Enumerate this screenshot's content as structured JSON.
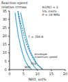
{
  "chart_data": {
    "type": "line",
    "y_label": "Reaction speed relative r/rmax",
    "x_label": "NH3, vol%",
    "annotations": [
      "H2/N2 = 3",
      "5% inerts",
      "P = 28 MPa"
    ],
    "xlim": [
      0,
      20
    ],
    "xticks": [
      0,
      5,
      10,
      15,
      20
    ],
    "ylim": [
      0,
      35
    ],
    "yticks": [
      0,
      5,
      10,
      15,
      20,
      25,
      30,
      35
    ],
    "grid": false,
    "series": [
      {
        "name": "800",
        "color": "#3fa9d8",
        "line_style": "solid",
        "x": [
          2,
          3,
          4,
          5,
          6,
          7,
          8
        ],
        "values": [
          34,
          22,
          14,
          8,
          4,
          1.5,
          0
        ]
      },
      {
        "name": "750",
        "color": "#3fa9d8",
        "line_style": "solid",
        "x": [
          3,
          4,
          5,
          6,
          7,
          8,
          9,
          10
        ],
        "values": [
          35,
          25,
          17,
          11,
          7,
          4,
          1.5,
          0
        ]
      },
      {
        "name": "T = 700 K",
        "color": "#3fa9d8",
        "line_style": "solid",
        "x": [
          4,
          5,
          6,
          7,
          8,
          9,
          10,
          11,
          12
        ],
        "values": [
          34,
          26,
          19,
          13,
          9,
          6,
          3,
          1.5,
          0
        ]
      },
      {
        "name": "envelope maximum speed",
        "color": "#1f5f8b",
        "line_style": "dashed",
        "x": [
          3,
          4,
          6,
          8,
          10,
          12
        ],
        "values": [
          35,
          28,
          16,
          8,
          3,
          0
        ]
      }
    ]
  }
}
